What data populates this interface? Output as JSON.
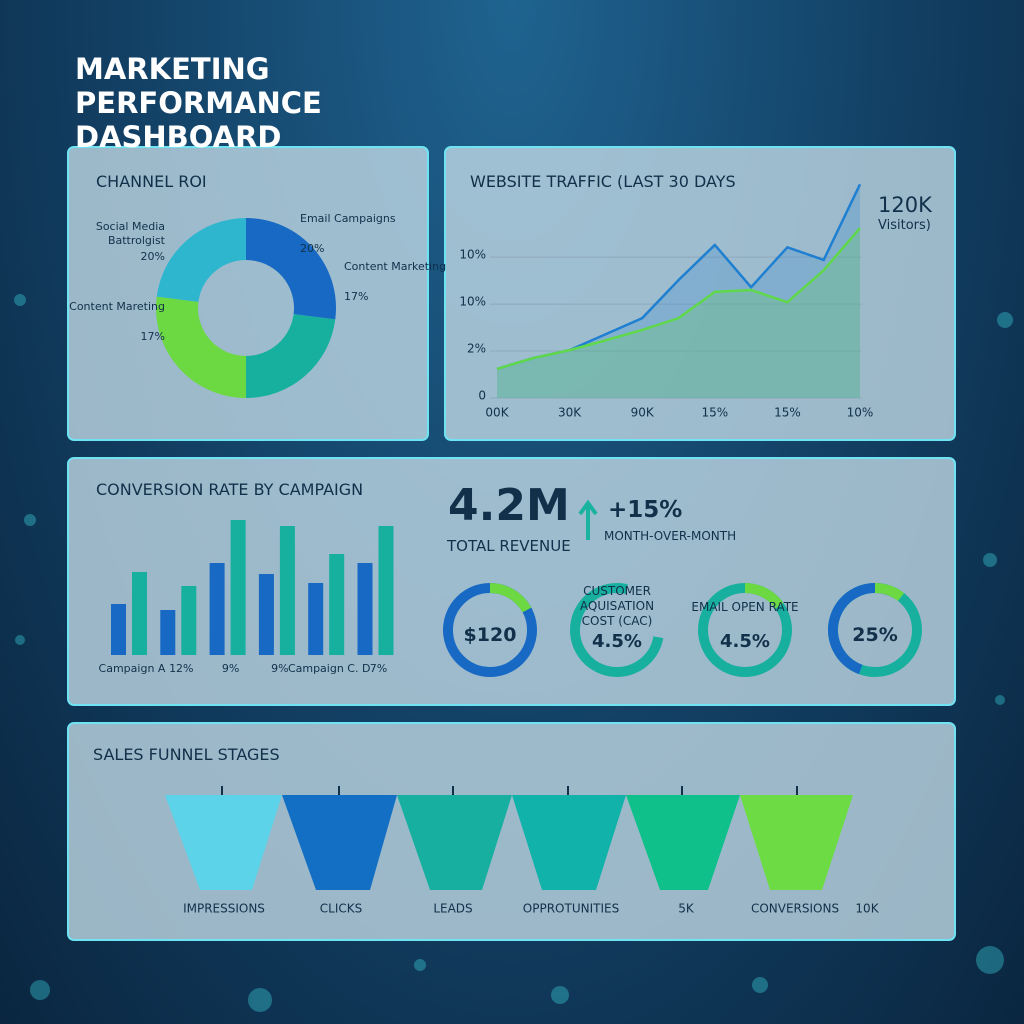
{
  "header": {
    "title": "MARKETING PERFORMANCE DASHBOARD"
  },
  "chart_data": [
    {
      "type": "donut",
      "title": "CHANNEL ROI",
      "categories": [
        "Email Campaigns",
        "Content Marketing",
        "Social Media Battrolgist",
        "Content Mareting"
      ],
      "values": [
        20,
        17,
        20,
        17
      ],
      "value_labels": [
        "20%",
        "17%",
        "20%",
        "17%"
      ],
      "colors": [
        "#1769c4",
        "#17b09f",
        "#6cd842",
        "#2fb6cf"
      ]
    },
    {
      "type": "line",
      "title": "WEBSITE TRAFFIC (LAST 30 DAYS",
      "annotations": [
        "120K",
        "Visitors)"
      ],
      "x": [
        0,
        1,
        2,
        3,
        4,
        5,
        6,
        7,
        8,
        9,
        10
      ],
      "series": [
        {
          "color": "#1f7fd0",
          "values": [
            0.62,
            0.85,
            1.02,
            1.36,
            1.7,
            2.51,
            3.26,
            2.36,
            3.21,
            2.94,
            4.55
          ]
        },
        {
          "color": "#5fd84a",
          "values": [
            0.62,
            0.85,
            1.02,
            1.23,
            1.45,
            1.7,
            2.26,
            2.3,
            2.04,
            2.72,
            3.62
          ]
        }
      ],
      "xlim": [
        0,
        10
      ],
      "xticks": [
        {
          "value": 0,
          "label": "00K"
        },
        {
          "value": 2,
          "label": "30K"
        },
        {
          "value": 4,
          "label": "90K"
        },
        {
          "value": 6,
          "label": "15%"
        },
        {
          "value": 8,
          "label": "15%"
        },
        {
          "value": 10,
          "label": "10%"
        }
      ],
      "ylim": [
        0,
        4.6
      ],
      "yticks": [
        0,
        {
          "value": 1,
          "label": "2%"
        },
        {
          "value": 2,
          "label": "10%"
        },
        {
          "value": 3,
          "label": "10%"
        }
      ],
      "grid": true
    },
    {
      "type": "bar",
      "title": "CONVERSION RATE BY CAMPAIGN",
      "categories": [
        "Campaign A",
        "12%",
        "9%",
        "9%",
        "Campaign C. D",
        "7%"
      ],
      "series": [
        {
          "color": "#1769c4",
          "values": [
            51,
            45,
            92,
            81,
            72,
            92
          ]
        },
        {
          "color": "#17b09f",
          "values": [
            83,
            69,
            135,
            129,
            101,
            129
          ]
        }
      ],
      "ylim": [
        0,
        140
      ]
    }
  ],
  "kpi": {
    "value": "4.2M",
    "label": "TOTAL REVENUE",
    "change": "+15%",
    "change_label": "MONTH-OVER-MONTH"
  },
  "gauges": [
    {
      "value": "$120"
    },
    {
      "label": "CUSTOMER AQUISATION COST (CAC)",
      "value": "4.5%"
    },
    {
      "label": "EMAIL OPEN RATE",
      "value": "4.5%"
    },
    {
      "value": "25%"
    }
  ],
  "funnel": {
    "title": "SALES FUNNEL STAGES",
    "labels": [
      "IMPRESSIONS",
      "CLICKS",
      "LEADS",
      "OPPROTUNITIES",
      "5K",
      "CONVERSIONS",
      "10K"
    ]
  }
}
